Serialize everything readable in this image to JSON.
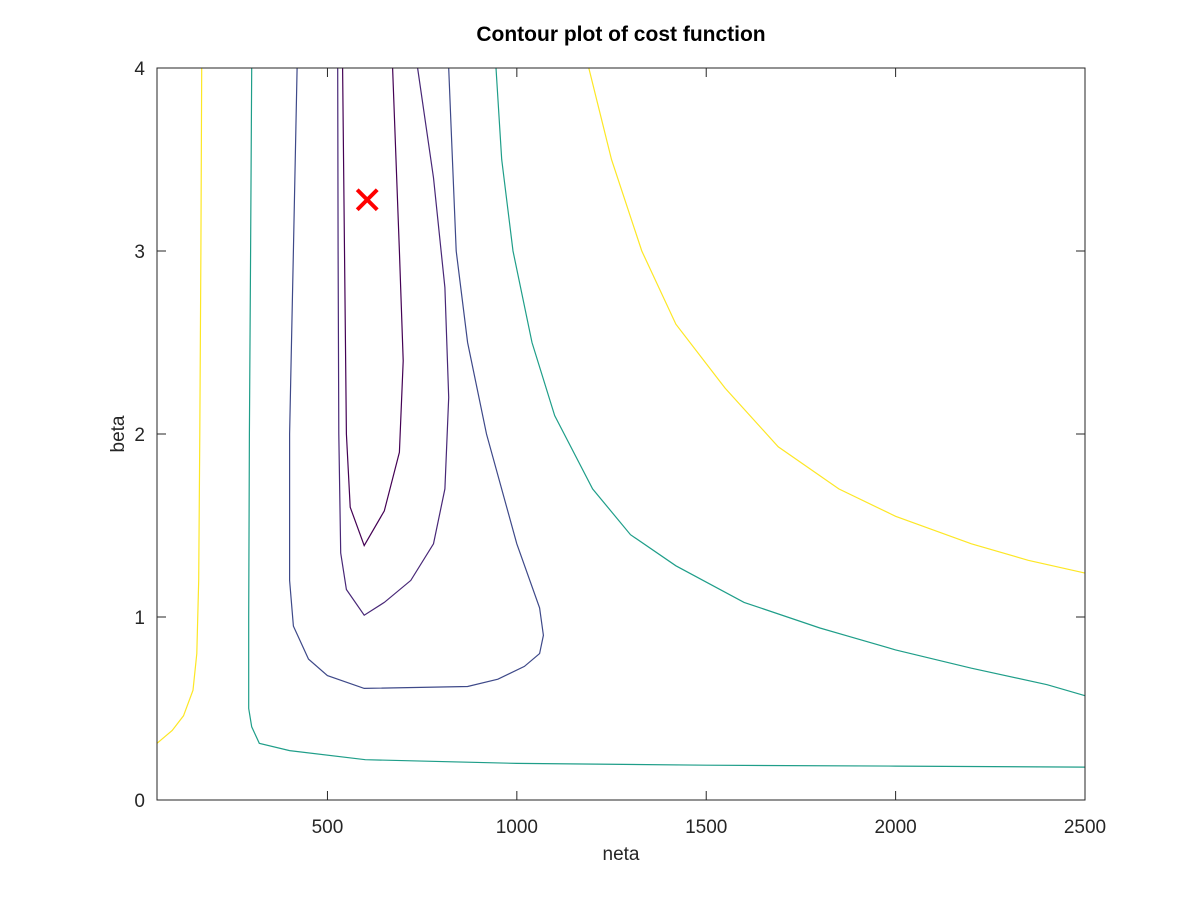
{
  "chart_data": {
    "type": "contour",
    "title": "Contour plot of cost function",
    "xlabel": "neta",
    "ylabel": "beta",
    "xlim": [
      50,
      2500
    ],
    "ylim": [
      0,
      4
    ],
    "xticks": [
      500,
      1000,
      1500,
      2000,
      2500
    ],
    "xtick_labels": [
      "500",
      "1000",
      "1500",
      "2000",
      "2500"
    ],
    "yticks": [
      0,
      1,
      2,
      3,
      4
    ],
    "ytick_labels": [
      "0",
      "1",
      "2",
      "3",
      "4"
    ],
    "grid": false,
    "box": true,
    "series": [
      {
        "color": "#440154",
        "points": [
          [
            540,
            4.0
          ],
          [
            545,
            3.0
          ],
          [
            550,
            2.0
          ],
          [
            560,
            1.6
          ],
          [
            597,
            1.39
          ],
          [
            650,
            1.58
          ],
          [
            690,
            1.9
          ],
          [
            700,
            2.4
          ],
          [
            690,
            3.0
          ],
          [
            672,
            4.0
          ]
        ]
      },
      {
        "color": "#482777",
        "points": [
          [
            527,
            4.0
          ],
          [
            528,
            3.0
          ],
          [
            530,
            2.0
          ],
          [
            535,
            1.35
          ],
          [
            550,
            1.15
          ],
          [
            597,
            1.01
          ],
          [
            650,
            1.08
          ],
          [
            720,
            1.2
          ],
          [
            780,
            1.4
          ],
          [
            810,
            1.7
          ],
          [
            820,
            2.2
          ],
          [
            810,
            2.8
          ],
          [
            780,
            3.4
          ],
          [
            738,
            4.0
          ]
        ]
      },
      {
        "color": "#3e4989",
        "points": [
          [
            420,
            4.0
          ],
          [
            410,
            3.0
          ],
          [
            400,
            2.0
          ],
          [
            400,
            1.2
          ],
          [
            410,
            0.95
          ],
          [
            450,
            0.77
          ],
          [
            500,
            0.68
          ],
          [
            597,
            0.61
          ],
          [
            870,
            0.62
          ],
          [
            950,
            0.66
          ],
          [
            1020,
            0.73
          ],
          [
            1060,
            0.8
          ],
          [
            1070,
            0.9
          ],
          [
            1060,
            1.05
          ],
          [
            1000,
            1.4
          ],
          [
            920,
            2.0
          ],
          [
            870,
            2.5
          ],
          [
            840,
            3.0
          ],
          [
            827,
            3.65
          ],
          [
            820,
            4.0
          ]
        ]
      },
      {
        "color": "#1f9e89",
        "points": [
          [
            300,
            4.0
          ],
          [
            297,
            3.0
          ],
          [
            294,
            2.0
          ],
          [
            292,
            1.0
          ],
          [
            292,
            0.5
          ],
          [
            300,
            0.4
          ],
          [
            320,
            0.31
          ],
          [
            400,
            0.27
          ],
          [
            600,
            0.22
          ],
          [
            1000,
            0.2
          ],
          [
            1500,
            0.19
          ],
          [
            2000,
            0.185
          ],
          [
            2500,
            0.18
          ]
        ]
      },
      {
        "color": "#1f9e89",
        "points": [
          [
            945,
            4.0
          ],
          [
            960,
            3.5
          ],
          [
            990,
            3.0
          ],
          [
            1040,
            2.5
          ],
          [
            1100,
            2.1
          ],
          [
            1200,
            1.7
          ],
          [
            1300,
            1.45
          ],
          [
            1420,
            1.28
          ],
          [
            1600,
            1.08
          ],
          [
            1800,
            0.94
          ],
          [
            2000,
            0.82
          ],
          [
            2200,
            0.72
          ],
          [
            2400,
            0.63
          ],
          [
            2500,
            0.57
          ]
        ]
      },
      {
        "color": "#fde725",
        "points": [
          [
            50,
            0.31
          ],
          [
            90,
            0.38
          ],
          [
            120,
            0.46
          ],
          [
            145,
            0.6
          ],
          [
            155,
            0.8
          ],
          [
            160,
            1.2
          ],
          [
            163,
            2.0
          ],
          [
            166,
            3.0
          ],
          [
            168,
            4.0
          ]
        ]
      },
      {
        "color": "#fde725",
        "points": [
          [
            1190,
            4.0
          ],
          [
            1250,
            3.5
          ],
          [
            1330,
            3.0
          ],
          [
            1420,
            2.6
          ],
          [
            1550,
            2.25
          ],
          [
            1690,
            1.93
          ],
          [
            1850,
            1.7
          ],
          [
            2000,
            1.55
          ],
          [
            2200,
            1.4
          ],
          [
            2350,
            1.31
          ],
          [
            2500,
            1.24
          ]
        ]
      }
    ],
    "markers": [
      {
        "x": 605,
        "y": 3.28,
        "symbol": "x",
        "color": "#ff0000"
      }
    ]
  }
}
